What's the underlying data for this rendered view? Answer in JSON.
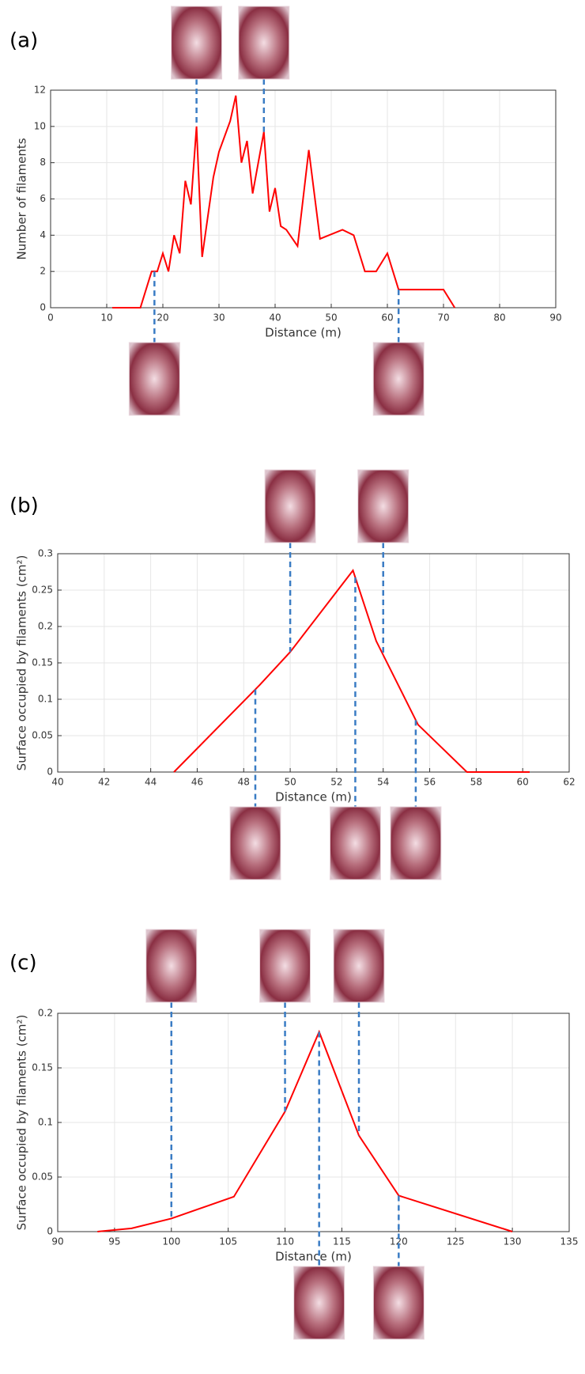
{
  "chart_data": [
    {
      "type": "line",
      "label": "(a)",
      "xlabel": "Distance (m)",
      "ylabel": "Number of filaments",
      "color": "#ff0000",
      "x": [
        11,
        16,
        18,
        19,
        20,
        21,
        22,
        23,
        24,
        25,
        26,
        27,
        28,
        29,
        30,
        32,
        33,
        34,
        35,
        36,
        37,
        38,
        39,
        40,
        41,
        42,
        44,
        46,
        48,
        52,
        54,
        56,
        57,
        58,
        60,
        62,
        70,
        72
      ],
      "values": [
        0,
        0,
        2,
        2,
        3,
        2,
        4,
        3,
        7,
        5.7,
        10,
        2.8,
        5,
        7.2,
        8.6,
        10.3,
        11.7,
        8,
        9.2,
        6.3,
        8,
        9.7,
        5.3,
        6.6,
        4.5,
        4.3,
        3.4,
        8.7,
        3.8,
        4.3,
        4,
        2,
        2,
        2,
        3,
        1,
        1,
        0
      ],
      "xlim": [
        0,
        90
      ],
      "xticks": [
        0,
        10,
        20,
        30,
        40,
        50,
        60,
        70,
        80,
        90
      ],
      "ylim": [
        0,
        12
      ],
      "yticks": [
        0,
        2,
        4,
        6,
        8,
        10,
        12
      ],
      "grid": true,
      "samples": [
        {
          "x": 26,
          "side": "above"
        },
        {
          "x": 38,
          "side": "above"
        },
        {
          "x": 18.5,
          "side": "below"
        },
        {
          "x": 62,
          "side": "below"
        }
      ]
    },
    {
      "type": "line",
      "label": "(b)",
      "xlabel": "Distance (m)",
      "ylabel": "Surface occupied by filaments (cm²)",
      "color": "#ff0000",
      "x": [
        45,
        48.7,
        50,
        52.7,
        53.7,
        55.5,
        57.6,
        60.3
      ],
      "values": [
        0,
        0.12,
        0.165,
        0.277,
        0.18,
        0.065,
        0,
        0
      ],
      "xlim": [
        40,
        62
      ],
      "xticks": [
        40,
        42,
        44,
        46,
        48,
        50,
        52,
        54,
        56,
        58,
        60,
        62
      ],
      "ylim": [
        0,
        0.3
      ],
      "yticks": [
        0,
        0.05,
        0.1,
        0.15,
        0.2,
        0.25,
        0.3
      ],
      "grid": true,
      "samples": [
        {
          "x": 50,
          "side": "above"
        },
        {
          "x": 54,
          "side": "above"
        },
        {
          "x": 48.5,
          "side": "below"
        },
        {
          "x": 52.8,
          "side": "below"
        },
        {
          "x": 55.4,
          "side": "below"
        }
      ]
    },
    {
      "type": "line",
      "label": "(c)",
      "xlabel": "Distance (m)",
      "ylabel": "Surface occupied by filaments (cm²)",
      "color": "#ff0000",
      "x": [
        93.5,
        96.5,
        100,
        105.5,
        110,
        113,
        116.5,
        120,
        130
      ],
      "values": [
        0,
        0.003,
        0.012,
        0.032,
        0.11,
        0.183,
        0.088,
        0.033,
        0
      ],
      "xlim": [
        90,
        135
      ],
      "xticks": [
        90,
        95,
        100,
        105,
        110,
        115,
        120,
        125,
        130,
        135
      ],
      "ylim": [
        0,
        0.2
      ],
      "yticks": [
        0,
        0.05,
        0.1,
        0.15,
        0.2
      ],
      "grid": true,
      "samples": [
        {
          "x": 100,
          "side": "above"
        },
        {
          "x": 110,
          "side": "above"
        },
        {
          "x": 116.5,
          "side": "above"
        },
        {
          "x": 113,
          "side": "below"
        },
        {
          "x": 120,
          "side": "below"
        }
      ]
    }
  ]
}
